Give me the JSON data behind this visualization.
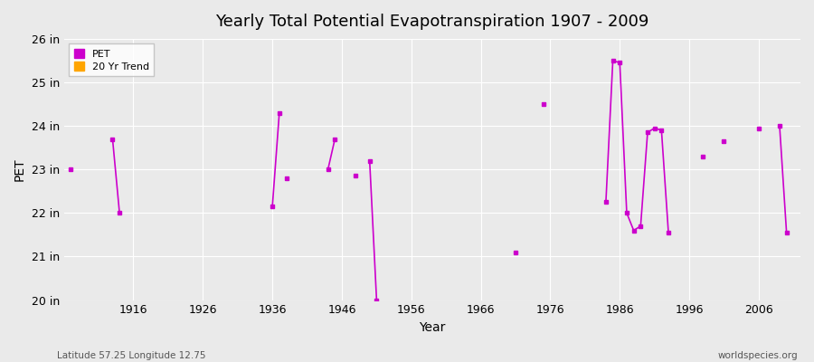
{
  "title": "Yearly Total Potential Evapotranspiration 1907 - 2009",
  "xlabel": "Year",
  "ylabel": "PET",
  "xlim": [
    1906,
    2012
  ],
  "ylim": [
    20,
    26
  ],
  "yticks": [
    20,
    21,
    22,
    23,
    24,
    25,
    26
  ],
  "ytick_labels": [
    "20 in",
    "21 in",
    "22 in",
    "23 in",
    "24 in",
    "25 in",
    "26 in"
  ],
  "xticks": [
    1916,
    1926,
    1936,
    1946,
    1956,
    1966,
    1976,
    1986,
    1996,
    2006
  ],
  "background_color": "#eaeaea",
  "plot_bg_color": "#eaeaea",
  "grid_color": "#ffffff",
  "pet_color": "#cc00cc",
  "trend_color": "#ffa500",
  "pet_segments": [
    [
      [
        1907,
        23.0
      ]
    ],
    [
      [
        1913,
        23.7
      ],
      [
        1914,
        22.0
      ]
    ],
    [
      [
        1936,
        22.15
      ],
      [
        1937,
        24.3
      ]
    ],
    [
      [
        1938,
        22.8
      ]
    ],
    [
      [
        1944,
        23.0
      ],
      [
        1945,
        23.7
      ]
    ],
    [
      [
        1948,
        22.85
      ]
    ],
    [
      [
        1950,
        23.2
      ],
      [
        1951,
        20.0
      ]
    ],
    [
      [
        1971,
        21.1
      ]
    ],
    [
      [
        1975,
        24.5
      ]
    ],
    [
      [
        1984,
        22.25
      ],
      [
        1985,
        25.5
      ],
      [
        1986,
        25.45
      ],
      [
        1987,
        22.0
      ],
      [
        1988,
        21.6
      ],
      [
        1989,
        21.7
      ],
      [
        1990,
        23.85
      ],
      [
        1991,
        23.95
      ],
      [
        1992,
        23.9
      ],
      [
        1993,
        21.55
      ]
    ],
    [
      [
        1998,
        23.3
      ]
    ],
    [
      [
        2001,
        23.65
      ]
    ],
    [
      [
        2006,
        23.95
      ]
    ],
    [
      [
        2009,
        24.0
      ],
      [
        2010,
        21.55
      ]
    ]
  ],
  "footer_left": "Latitude 57.25 Longitude 12.75",
  "footer_right": "worldspecies.org"
}
